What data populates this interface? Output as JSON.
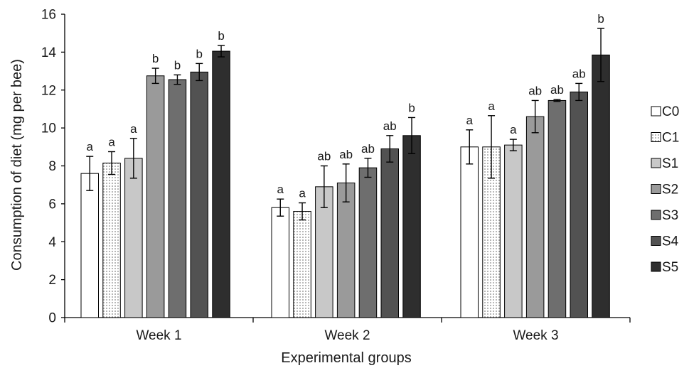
{
  "chart_data": {
    "type": "bar",
    "xlabel": "Experimental groups",
    "ylabel": "Consumption of diet (mg per bee)",
    "ylim": [
      0,
      16
    ],
    "yticks": [
      0,
      2,
      4,
      6,
      8,
      10,
      12,
      14,
      16
    ],
    "grid": false,
    "legend_position": "right",
    "categories": [
      "Week 1",
      "Week 2",
      "Week 3"
    ],
    "series": [
      {
        "name": "C0",
        "fill": "#ffffff",
        "pattern": "none",
        "values": [
          7.6,
          5.8,
          9.0
        ],
        "errors": [
          0.9,
          0.45,
          0.9
        ],
        "labels": [
          "a",
          "a",
          "a"
        ]
      },
      {
        "name": "C1",
        "fill": "#ffffff",
        "pattern": "dots",
        "values": [
          8.15,
          5.6,
          9.0
        ],
        "errors": [
          0.6,
          0.45,
          1.65
        ],
        "labels": [
          "a",
          "a",
          "a"
        ]
      },
      {
        "name": "S1",
        "fill": "#c8c8c8",
        "pattern": "none",
        "values": [
          8.4,
          6.9,
          9.1
        ],
        "errors": [
          1.05,
          1.1,
          0.3
        ],
        "labels": [
          "a",
          "ab",
          "a"
        ]
      },
      {
        "name": "S2",
        "fill": "#9a9a9a",
        "pattern": "none",
        "values": [
          12.75,
          7.1,
          10.6
        ],
        "errors": [
          0.4,
          1.0,
          0.85
        ],
        "labels": [
          "b",
          "ab",
          "ab"
        ]
      },
      {
        "name": "S3",
        "fill": "#6e6e6e",
        "pattern": "none",
        "values": [
          12.55,
          7.9,
          11.45
        ],
        "errors": [
          0.25,
          0.5,
          0.05
        ],
        "labels": [
          "b",
          "ab",
          "ab"
        ]
      },
      {
        "name": "S4",
        "fill": "#525252",
        "pattern": "none",
        "values": [
          12.95,
          8.9,
          11.9
        ],
        "errors": [
          0.45,
          0.7,
          0.45
        ],
        "labels": [
          "b",
          "ab",
          "ab"
        ]
      },
      {
        "name": "S5",
        "fill": "#2e2e2e",
        "pattern": "none",
        "values": [
          14.05,
          9.6,
          13.85
        ],
        "errors": [
          0.3,
          0.95,
          1.4
        ],
        "labels": [
          "b",
          "b",
          "b"
        ]
      }
    ]
  }
}
